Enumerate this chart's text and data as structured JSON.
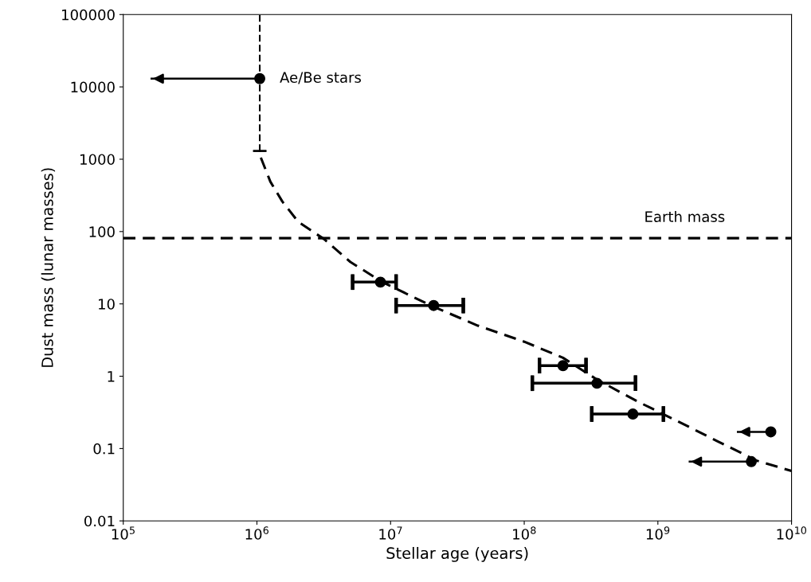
{
  "chart_data": {
    "type": "scatter",
    "xlabel": "Stellar age (years)",
    "ylabel": "Dust mass (lunar masses)",
    "log": "xy",
    "grid": false,
    "legend": false,
    "xlim": [
      100000,
      10000000000
    ],
    "ylim": [
      0.01,
      100000
    ],
    "xticks": [
      {
        "value": 100000,
        "label": "10$^{5}$"
      },
      {
        "value": 1000000,
        "label": "10$^{6}$"
      },
      {
        "value": 10000000,
        "label": "10$^{7}$"
      },
      {
        "value": 100000000,
        "label": "10$^{8}$"
      },
      {
        "value": 1000000000,
        "label": "10$^{9}$"
      },
      {
        "value": 10000000000,
        "label": "10$^{10}$"
      }
    ],
    "yticks": [
      0.01,
      0.1,
      1,
      10,
      100,
      1000,
      10000,
      100000
    ],
    "series": [
      {
        "color": "#000000",
        "marker": "circle",
        "x": [
          1050000
        ],
        "values": [
          13000
        ],
        "xerrors": [
          [
            160000,
            1050000
          ]
        ],
        "errors": [
          [
            1300,
            100000
          ]
        ]
      },
      {
        "color": "#000000",
        "marker": "circle",
        "x": [
          8400000,
          21000000,
          195000000,
          350000000,
          650000000
        ],
        "values": [
          20,
          9.5,
          1.4,
          0.8,
          0.3
        ],
        "xerrors": [
          [
            5200000,
            11000000
          ],
          [
            11000000,
            35000000
          ],
          [
            130000000,
            290000000
          ],
          [
            115000000,
            680000000
          ],
          [
            320000000,
            1100000000
          ]
        ]
      },
      {
        "color": "#000000",
        "marker": "circle",
        "x": [
          7000000000,
          5000000000
        ],
        "values": [
          0.17,
          0.066
        ],
        "xerrors": [
          [
            3900000000,
            7000000000
          ],
          [
            1700000000,
            5000000000
          ]
        ]
      },
      {
        "type": "line",
        "color": "#000000",
        "line_style": "dashed",
        "marker": "none",
        "x": [
          1070000,
          1260000,
          1550000,
          2040000,
          3200000,
          5000000,
          8700000,
          20000000,
          45000000,
          100000000,
          195000000,
          350000000,
          700000000,
          1400000000,
          2800000000,
          5500000000,
          10000000000
        ],
        "values": [
          1050,
          490,
          260,
          136,
          78,
          38,
          20,
          9.5,
          5,
          3,
          1.8,
          0.9,
          0.45,
          0.24,
          0.126,
          0.068,
          0.049
        ]
      }
    ],
    "ref_lines": [
      {
        "axis": "y",
        "value": 81,
        "label": "Earth mass",
        "color": "#000000",
        "line_style": "dashed"
      }
    ],
    "annotations": [
      {
        "text": "Ae/Be stars",
        "x": 1050000,
        "y": 13000
      }
    ]
  }
}
